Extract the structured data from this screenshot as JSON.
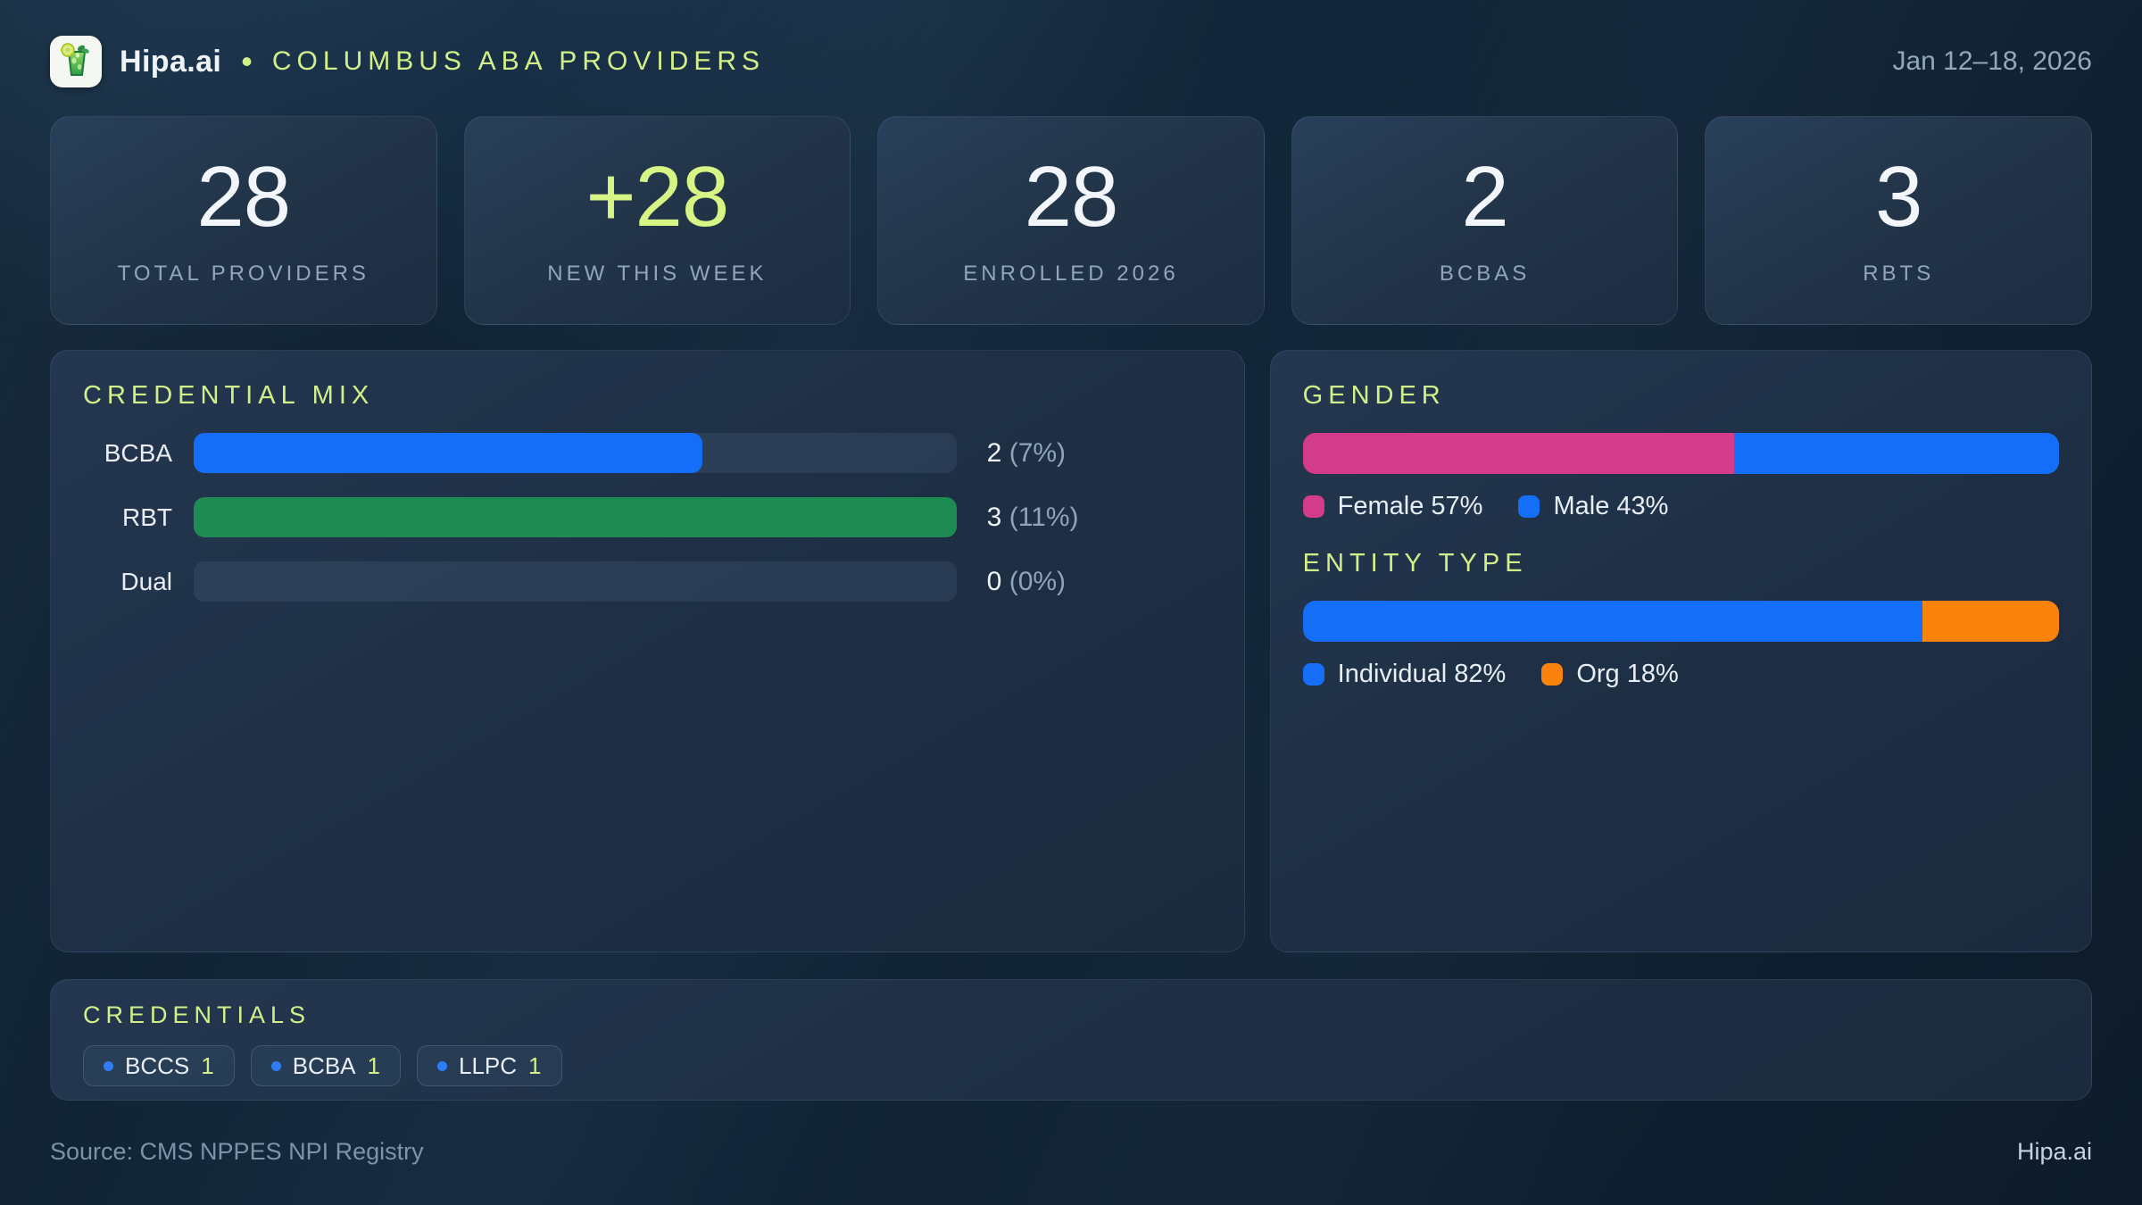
{
  "colors": {
    "accent_green": "#d3ef8a",
    "blue": "#156ef7",
    "green": "#1e8b52",
    "pink": "#d33c8a",
    "orange": "#f9830d",
    "chip_dot_blue": "#2f7df6"
  },
  "header": {
    "logo_icon": "mojito-glass-icon",
    "brand": "Hipa.ai",
    "separator": "•",
    "title": "COLUMBUS ABA PROVIDERS",
    "date_range": "Jan 12–18, 2026"
  },
  "stats": [
    {
      "value": "28",
      "label": "TOTAL PROVIDERS"
    },
    {
      "value": "+28",
      "label": "NEW THIS WEEK"
    },
    {
      "value": "28",
      "label": "ENROLLED 2026"
    },
    {
      "value": "2",
      "label": "BCBAS"
    },
    {
      "value": "3",
      "label": "RBTS"
    }
  ],
  "credential_mix": {
    "title": "CREDENTIAL MIX",
    "rows": [
      {
        "label": "BCBA",
        "count": "2",
        "pct": "(7%)",
        "width_pct": 66.7,
        "color": "#156ef7"
      },
      {
        "label": "RBT",
        "count": "3",
        "pct": "(11%)",
        "width_pct": 100,
        "color": "#1e8b52"
      },
      {
        "label": "Dual",
        "count": "0",
        "pct": "(0%)",
        "width_pct": 0,
        "color": "#156ef7"
      }
    ]
  },
  "gender": {
    "title": "GENDER",
    "segments": [
      {
        "name": "Female",
        "pct": 57,
        "color": "#d33c8a",
        "legend": "Female 57%"
      },
      {
        "name": "Male",
        "pct": 43,
        "color": "#156ef7",
        "legend": "Male 43%"
      }
    ]
  },
  "entity_type": {
    "title": "ENTITY TYPE",
    "segments": [
      {
        "name": "Individual",
        "pct": 82,
        "color": "#156ef7",
        "legend": "Individual 82%"
      },
      {
        "name": "Org",
        "pct": 18,
        "color": "#f9830d",
        "legend": "Org 18%"
      }
    ]
  },
  "credentials": {
    "title": "CREDENTIALS",
    "chips": [
      {
        "label": "BCCS",
        "count": "1"
      },
      {
        "label": "BCBA",
        "count": "1"
      },
      {
        "label": "LLPC",
        "count": "1"
      }
    ]
  },
  "footer": {
    "source": "Source: CMS NPPES NPI Registry",
    "brand": "Hipa.ai"
  },
  "chart_data": [
    {
      "type": "bar",
      "orientation": "horizontal",
      "title": "Credential Mix",
      "categories": [
        "BCBA",
        "RBT",
        "Dual"
      ],
      "values": [
        2,
        3,
        0
      ],
      "value_labels": [
        "2 (7%)",
        "3 (11%)",
        "0 (0%)"
      ],
      "xlim": [
        0,
        3
      ],
      "grid": false
    },
    {
      "type": "bar",
      "variant": "stacked-percent",
      "title": "Gender",
      "categories": [
        "Gender"
      ],
      "series": [
        {
          "name": "Female",
          "values": [
            57
          ]
        },
        {
          "name": "Male",
          "values": [
            43
          ]
        }
      ],
      "legend_position": "bottom"
    },
    {
      "type": "bar",
      "variant": "stacked-percent",
      "title": "Entity Type",
      "categories": [
        "Entity Type"
      ],
      "series": [
        {
          "name": "Individual",
          "values": [
            82
          ]
        },
        {
          "name": "Org",
          "values": [
            18
          ]
        }
      ],
      "legend_position": "bottom"
    }
  ]
}
